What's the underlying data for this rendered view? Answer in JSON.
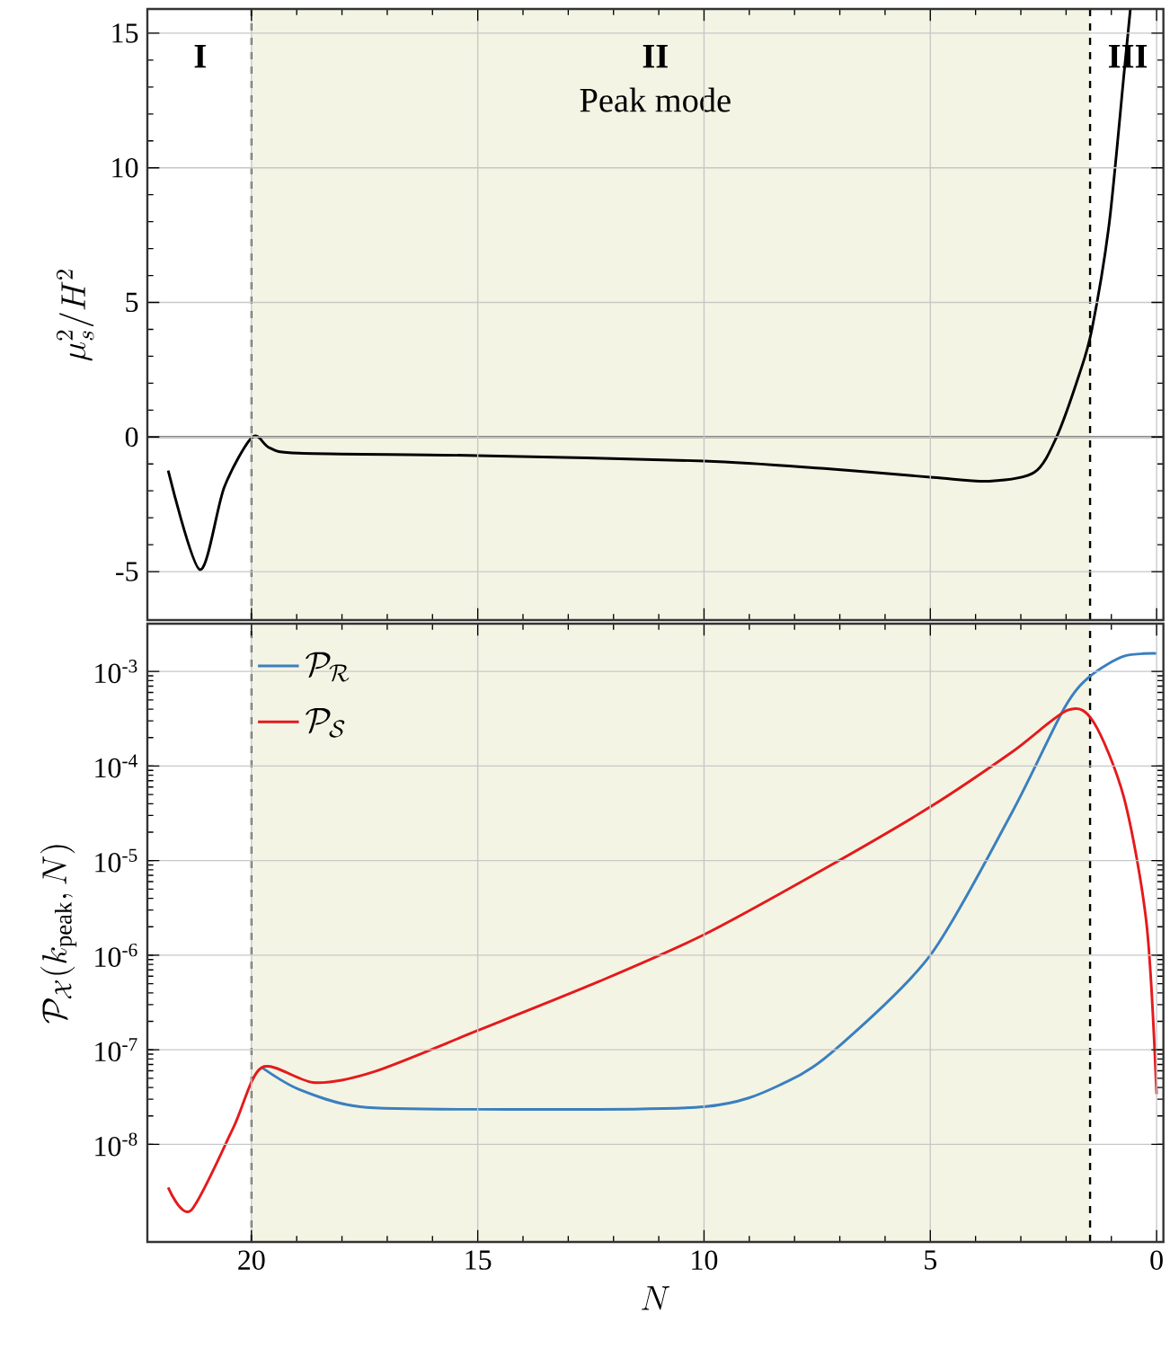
{
  "chart_data": [
    {
      "type": "line",
      "ylabel": "\\mu_s^2/H^2",
      "xlim": [
        22.3,
        -0.15
      ],
      "ylim": [
        -6.8,
        15.9
      ],
      "xticks": [
        20,
        15,
        10,
        5,
        0
      ],
      "yticks": [
        -5,
        0,
        5,
        10,
        15
      ],
      "grid": true,
      "tick_labels": "y",
      "series": [
        {
          "color": "#000000",
          "x": [
            21.84,
            21.14,
            20.6,
            19.98,
            19.6,
            18.95,
            15.01,
            10.0,
            7.35,
            4.94,
            3.7,
            2.7,
            2.21,
            1.71,
            1.43,
            1.05,
            0.72,
            0.58
          ],
          "values": [
            -1.25,
            -4.93,
            -1.86,
            0,
            -0.4,
            -0.6,
            -0.69,
            -0.89,
            -1.17,
            -1.5,
            -1.64,
            -1.31,
            0,
            2.32,
            4.0,
            7.9,
            13.5,
            15.9
          ]
        }
      ],
      "bands": [
        {
          "axis": "x",
          "from": 20,
          "to": 1.47,
          "color": "#f4f4e4"
        }
      ],
      "ref_lines": [
        {
          "axis": "x",
          "value": 20,
          "line_style": "dashed",
          "color": "#000000"
        },
        {
          "axis": "x",
          "value": 1.47,
          "line_style": "dashed",
          "color": "#000000"
        },
        {
          "axis": "y",
          "value": 0,
          "line_style": "solid",
          "color": "#000000"
        }
      ],
      "annotations": [
        "I",
        "II",
        "Peak mode",
        "III"
      ]
    },
    {
      "type": "line",
      "xlabel": "N",
      "ylabel": "\\mathcal{P}_{\\mathcal{X}}(k_{\\rm peak}, N)",
      "xlim": [
        22.3,
        -0.15
      ],
      "ylim": [
        9.3e-10,
        0.0032
      ],
      "log": "y",
      "grid": true,
      "legend": "top left",
      "xticks": [
        20,
        15,
        10,
        5,
        0
      ],
      "yticks": [
        {
          "value": 1e-08,
          "label": "10$^{-8}$"
        },
        {
          "value": 1e-07,
          "label": "10$^{-7}$"
        },
        {
          "value": 1e-06,
          "label": "10$^{-6}$"
        },
        {
          "value": 1e-05,
          "label": "10$^{-5}$"
        },
        {
          "value": 0.0001,
          "label": "10$^{-4}$"
        },
        {
          "value": 0.001,
          "label": "10$^{-3}$"
        }
      ],
      "series": [
        {
          "name": "\\mathcal{P}_{\\mathcal{R}}",
          "color": "#3a7fbf",
          "x": [
            19.77,
            18.94,
            17.6,
            15,
            10,
            8.17,
            7.01,
            5,
            3.2,
            2.04,
            1.47,
            0.72,
            0
          ],
          "values": [
            6.5e-08,
            3.8e-08,
            2.5e-08,
            2.35e-08,
            2.5e-08,
            4.6e-08,
            1.1e-07,
            1e-06,
            3.2e-05,
            0.00041,
            0.00089,
            0.00145,
            0.00155
          ]
        },
        {
          "name": "\\mathcal{P}_{\\mathcal{S}}",
          "color": "#e41a1c",
          "x": [
            21.84,
            21.34,
            20.4,
            19.77,
            18.6,
            17.28,
            15,
            12.31,
            10,
            7.34,
            5,
            3.2,
            1.96,
            1.39,
            0.72,
            0.22,
            0
          ],
          "values": [
            3.5e-09,
            2e-09,
            1.5e-08,
            6.5e-08,
            4.5e-08,
            5.9e-08,
            1.6e-07,
            5.3e-07,
            1.65e-06,
            8.2e-06,
            3.7e-05,
            0.00014,
            0.00039,
            0.00029,
            4.6e-05,
            2.1e-06,
            3.4e-08
          ]
        }
      ],
      "bands": [
        {
          "axis": "x",
          "from": 20,
          "to": 1.47,
          "color": "#f4f4e4"
        }
      ],
      "ref_lines": [
        {
          "axis": "x",
          "value": 20,
          "line_style": "dashed",
          "color": "#000000"
        },
        {
          "axis": "x",
          "value": 1.47,
          "line_style": "dashed",
          "color": "#000000"
        }
      ]
    }
  ]
}
